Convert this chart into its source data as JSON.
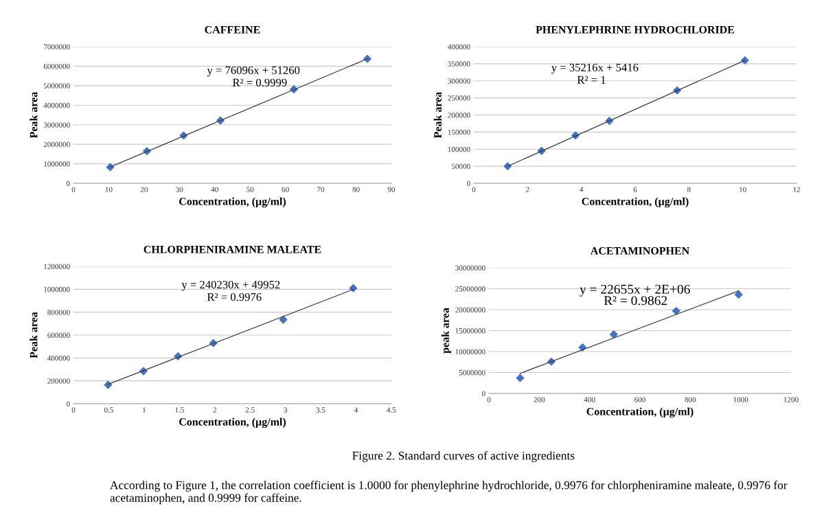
{
  "chart_data": [
    {
      "type": "scatter",
      "title": "CAFFEINE",
      "xlabel": "Concentration, (µg/ml)",
      "ylabel": "Peak area",
      "marker": "diamond",
      "grid": "y",
      "xlim": [
        0,
        90
      ],
      "xticks": [
        0,
        10,
        20,
        30,
        40,
        50,
        60,
        70,
        80,
        90
      ],
      "ylim": [
        0,
        7000000
      ],
      "yticks": [
        0,
        1000000,
        2000000,
        3000000,
        4000000,
        5000000,
        6000000,
        7000000
      ],
      "series": [
        {
          "type": "scatter",
          "color": "#4472c4",
          "x": [
            10.4,
            20.8,
            31.2,
            41.6,
            62.4,
            83.2
          ],
          "values": [
            830000,
            1650000,
            2450000,
            3220000,
            4820000,
            6380000
          ]
        },
        {
          "type": "line",
          "marker": "none",
          "color": "#404040",
          "x": [
            10.4,
            83.2
          ],
          "values": [
            840000,
            6380000
          ]
        }
      ],
      "annotations": [
        "y = 76096x + 51260",
        "R² = 0.9999"
      ]
    },
    {
      "type": "scatter",
      "title": "PHENYLEPHRINE HYDROCHLORIDE",
      "xlabel": "Concentration, (µg/ml)",
      "ylabel": "Peak area",
      "marker": "diamond",
      "grid": "y",
      "xlim": [
        0,
        12
      ],
      "xticks": [
        0,
        2,
        4,
        6,
        8,
        10,
        12
      ],
      "ylim": [
        0,
        400000
      ],
      "yticks": [
        0,
        50000,
        100000,
        150000,
        200000,
        250000,
        300000,
        350000,
        400000
      ],
      "series": [
        {
          "type": "scatter",
          "color": "#4472c4",
          "x": [
            1.26,
            2.52,
            3.78,
            5.04,
            7.56,
            10.08
          ],
          "values": [
            50000,
            95000,
            140000,
            183000,
            272000,
            360000
          ]
        },
        {
          "type": "line",
          "marker": "none",
          "color": "#404040",
          "x": [
            1.26,
            10.08
          ],
          "values": [
            50000,
            360000
          ]
        }
      ],
      "annotations": [
        "y = 35216x + 5416",
        "R² = 1"
      ]
    },
    {
      "type": "scatter",
      "title": "CHLORPHENIRAMINE MALEATE",
      "xlabel": "Concentration, (µg/ml)",
      "ylabel": "Peak area",
      "marker": "diamond",
      "grid": "y",
      "xlim": [
        0,
        4.5
      ],
      "xticks": [
        0,
        0.5,
        1,
        1.5,
        2,
        2.5,
        3,
        3.5,
        4,
        4.5
      ],
      "ylim": [
        0,
        1200000
      ],
      "yticks": [
        0,
        200000,
        400000,
        600000,
        800000,
        1000000,
        1200000
      ],
      "series": [
        {
          "type": "scatter",
          "color": "#4472c4",
          "x": [
            0.49,
            0.99,
            1.48,
            1.98,
            2.97,
            3.96
          ],
          "values": [
            165000,
            285000,
            415000,
            530000,
            735000,
            1010000
          ]
        },
        {
          "type": "line",
          "marker": "none",
          "color": "#404040",
          "x": [
            0.49,
            3.96
          ],
          "values": [
            170000,
            1000000
          ]
        }
      ],
      "annotations": [
        "y = 240230x + 49952",
        "R² = 0.9976"
      ]
    },
    {
      "type": "scatter",
      "title": "ACETAMINOPHEN",
      "xlabel": "Concentration, (µg/ml)",
      "ylabel": "peak area",
      "marker": "diamond",
      "grid": "y",
      "xlim": [
        0,
        1200
      ],
      "xticks": [
        0,
        200,
        400,
        600,
        800,
        1000,
        1200
      ],
      "ylim": [
        0,
        30000000
      ],
      "yticks": [
        0,
        5000000,
        10000000,
        15000000,
        20000000,
        25000000,
        30000000
      ],
      "series": [
        {
          "type": "scatter",
          "color": "#4472c4",
          "x": [
            124,
            248,
            372,
            496,
            744,
            992
          ],
          "values": [
            3700000,
            7600000,
            11000000,
            14100000,
            19700000,
            23600000
          ]
        },
        {
          "type": "line",
          "marker": "none",
          "color": "#404040",
          "x": [
            124,
            992
          ],
          "values": [
            4800000,
            24500000
          ]
        }
      ],
      "annotations": [
        "y = 22655x + 2E+06",
        "R² = 0.9862"
      ]
    },
    {
      "type": "other",
      "annotations": [
        "Figure 2. Standard curves of active ingredients",
        "According to Figure 1, the correlation coefficient is 1.0000 for phenylephrine hydrochloride, 0.9976 for chlorpheniramine maleate, 0.9976 for acetaminophen, and 0.9999 for caffeine."
      ]
    }
  ]
}
